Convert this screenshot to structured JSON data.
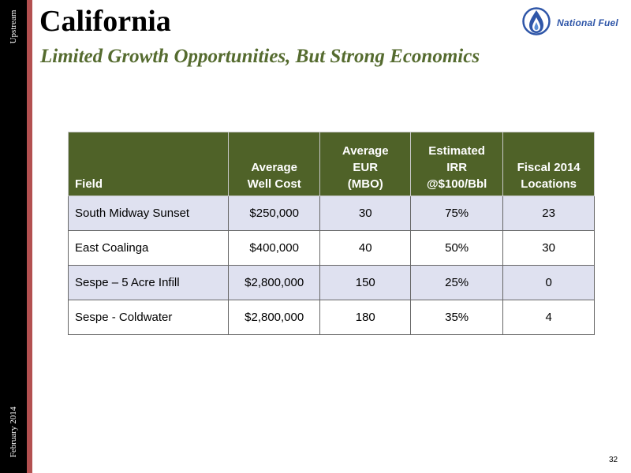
{
  "sidebar": {
    "section": "Upstream",
    "date": "February 2014"
  },
  "slide": {
    "title": "California",
    "subtitle": "Limited Growth Opportunities, But Strong Economics",
    "page_number": "32"
  },
  "logo": {
    "text": "National Fuel",
    "icon": "flame-drop-icon",
    "color": "#2f56a8"
  },
  "table": {
    "headers": [
      [
        "Field"
      ],
      [
        "Average",
        "Well Cost"
      ],
      [
        "Average",
        "EUR",
        "(MBO)"
      ],
      [
        "Estimated",
        "IRR",
        "@$100/Bbl"
      ],
      [
        "Fiscal 2014",
        "Locations"
      ]
    ],
    "rows": [
      [
        "South Midway Sunset",
        "$250,000",
        "30",
        "75%",
        "23"
      ],
      [
        "East Coalinga",
        "$400,000",
        "40",
        "50%",
        "30"
      ],
      [
        "Sespe – 5 Acre Infill",
        "$2,800,000",
        "150",
        "25%",
        "0"
      ],
      [
        "Sespe - Coldwater",
        "$2,800,000",
        "180",
        "35%",
        "4"
      ]
    ]
  },
  "colors": {
    "header_bg": "#4f6228",
    "subtitle": "#556b2f",
    "accent_bar": "#b35050",
    "row_band": "#dfe1f0"
  }
}
